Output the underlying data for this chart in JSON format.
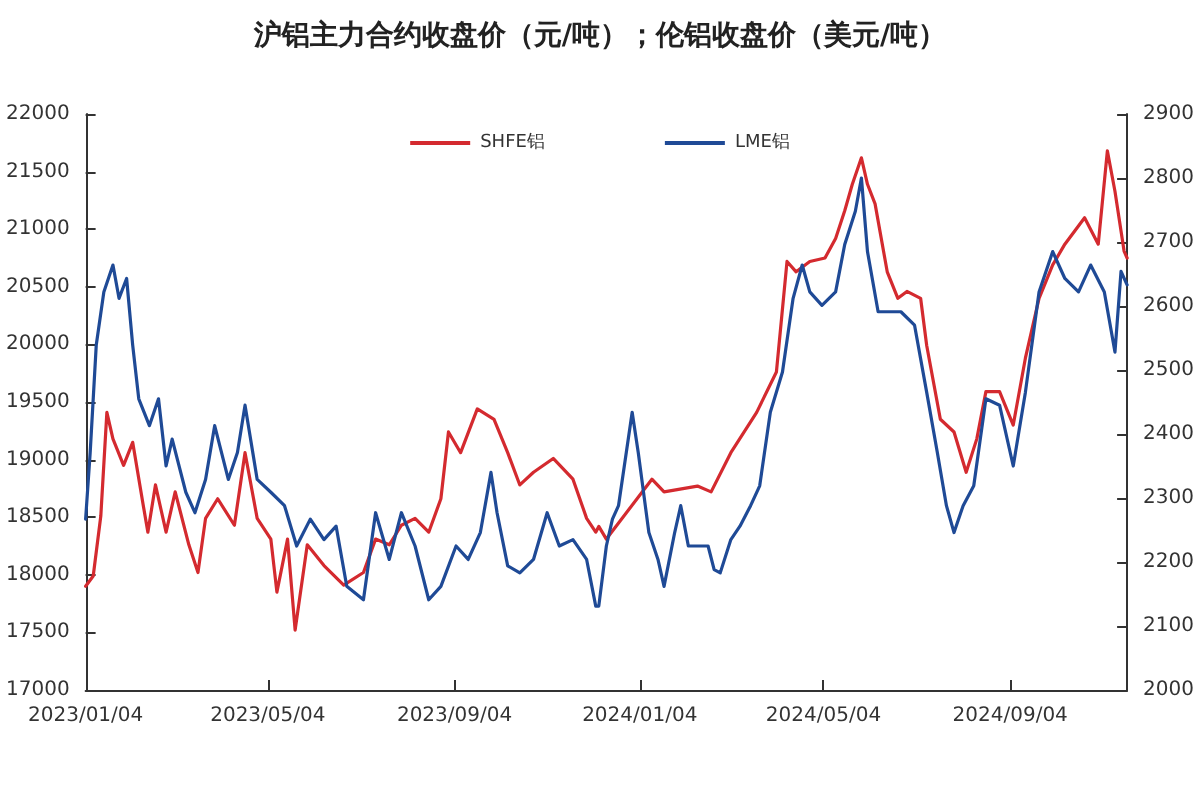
{
  "chart_data": {
    "type": "line",
    "title": "沪铝主力合约收盘价（元/吨）；伦铝收盘价（美元/吨）",
    "xlim": [
      "2023-01-04",
      "2024-11-20"
    ],
    "xticks": [
      {
        "value": "2023-01-04",
        "label": "2023/01/04"
      },
      {
        "value": "2023-05-04",
        "label": "2023/05/04"
      },
      {
        "value": "2023-09-04",
        "label": "2023/09/04"
      },
      {
        "value": "2024-01-04",
        "label": "2024/01/04"
      },
      {
        "value": "2024-05-04",
        "label": "2024/05/04"
      },
      {
        "value": "2024-09-04",
        "label": "2024/09/04"
      }
    ],
    "ylim": [
      17000,
      22000
    ],
    "yticks": [
      17000,
      17500,
      18000,
      18500,
      19000,
      19500,
      20000,
      20500,
      21000,
      21500,
      22000
    ],
    "y2lim": [
      2000,
      2900
    ],
    "y2ticks": [
      2000,
      2100,
      2200,
      2300,
      2400,
      2500,
      2600,
      2700,
      2800,
      2900
    ],
    "grid": false,
    "legend": "top",
    "marker": "none",
    "line_style": "solid",
    "series": [
      {
        "name": "SHFE铝",
        "color": "#d42a2f",
        "x": [
          "2023-01-04",
          "2023-01-09",
          "2023-01-14",
          "2023-01-18",
          "2023-01-22",
          "2023-01-29",
          "2023-02-04",
          "2023-02-11",
          "2023-02-14",
          "2023-02-19",
          "2023-02-26",
          "2023-03-04",
          "2023-03-13",
          "2023-03-19",
          "2023-03-24",
          "2023-04-01",
          "2023-04-12",
          "2023-04-19",
          "2023-04-27",
          "2023-05-06",
          "2023-05-10",
          "2023-05-17",
          "2023-05-22",
          "2023-05-30",
          "2023-06-10",
          "2023-06-23",
          "2023-07-06",
          "2023-07-14",
          "2023-07-23",
          "2023-07-31",
          "2023-08-09",
          "2023-08-18",
          "2023-08-26",
          "2023-08-31",
          "2023-09-08",
          "2023-09-19",
          "2023-09-30",
          "2023-10-09",
          "2023-10-17",
          "2023-10-26",
          "2023-11-08",
          "2023-11-21",
          "2023-11-30",
          "2023-12-06",
          "2023-12-08",
          "2023-12-13",
          "2024-01-12",
          "2024-01-20",
          "2024-02-11",
          "2024-02-20",
          "2024-03-04",
          "2024-03-21",
          "2024-04-03",
          "2024-04-10",
          "2024-04-16",
          "2024-04-25",
          "2024-05-05",
          "2024-05-12",
          "2024-05-18",
          "2024-05-23",
          "2024-05-29",
          "2024-06-02",
          "2024-06-07",
          "2024-06-15",
          "2024-06-22",
          "2024-06-28",
          "2024-07-07",
          "2024-07-11",
          "2024-07-20",
          "2024-07-29",
          "2024-08-06",
          "2024-08-13",
          "2024-08-19",
          "2024-08-28",
          "2024-09-06",
          "2024-09-14",
          "2024-09-23",
          "2024-10-02",
          "2024-10-10",
          "2024-10-23",
          "2024-11-01",
          "2024-11-07",
          "2024-11-12",
          "2024-11-18",
          "2024-11-20"
        ],
        "values": [
          17900,
          17990,
          18510,
          19410,
          19180,
          18950,
          19150,
          18600,
          18370,
          18780,
          18370,
          18720,
          18260,
          18020,
          18490,
          18660,
          18430,
          19060,
          18490,
          18310,
          17850,
          18310,
          17520,
          18260,
          18080,
          17910,
          18020,
          18310,
          18260,
          18430,
          18490,
          18370,
          18660,
          19240,
          19060,
          19440,
          19350,
          19060,
          18780,
          18890,
          19010,
          18830,
          18490,
          18370,
          18420,
          18310,
          18830,
          18720,
          18770,
          18720,
          19060,
          19410,
          19760,
          20720,
          20630,
          20720,
          20750,
          20920,
          21160,
          21390,
          21620,
          21390,
          21220,
          20630,
          20400,
          20460,
          20400,
          19990,
          19350,
          19240,
          18890,
          19180,
          19590,
          19590,
          19300,
          19880,
          20400,
          20690,
          20870,
          21100,
          20870,
          21680,
          21330,
          20810,
          20750
        ]
      },
      {
        "name": "LME铝",
        "color": "#1f4a96",
        "axis": "y2",
        "x": [
          "2023-01-04",
          "2023-01-07",
          "2023-01-11",
          "2023-01-16",
          "2023-01-22",
          "2023-01-26",
          "2023-01-31",
          "2023-02-04",
          "2023-02-08",
          "2023-02-15",
          "2023-02-21",
          "2023-02-26",
          "2023-03-02",
          "2023-03-11",
          "2023-03-17",
          "2023-03-24",
          "2023-03-30",
          "2023-04-08",
          "2023-04-14",
          "2023-04-19",
          "2023-04-27",
          "2023-05-06",
          "2023-05-15",
          "2023-05-23",
          "2023-06-01",
          "2023-06-10",
          "2023-06-18",
          "2023-06-25",
          "2023-07-06",
          "2023-07-14",
          "2023-07-23",
          "2023-07-31",
          "2023-08-09",
          "2023-08-18",
          "2023-08-26",
          "2023-09-05",
          "2023-09-13",
          "2023-09-21",
          "2023-09-28",
          "2023-10-02",
          "2023-10-09",
          "2023-10-17",
          "2023-10-26",
          "2023-11-04",
          "2023-11-12",
          "2023-11-21",
          "2023-11-30",
          "2023-12-06",
          "2023-12-08",
          "2023-12-13",
          "2023-12-17",
          "2023-12-21",
          "2023-12-30",
          "2024-01-03",
          "2024-01-10",
          "2024-01-16",
          "2024-01-20",
          "2024-01-27",
          "2024-01-31",
          "2024-02-05",
          "2024-02-11",
          "2024-02-18",
          "2024-02-22",
          "2024-02-26",
          "2024-03-04",
          "2024-03-10",
          "2024-03-17",
          "2024-03-23",
          "2024-03-30",
          "2024-04-07",
          "2024-04-14",
          "2024-04-20",
          "2024-04-25",
          "2024-05-03",
          "2024-05-12",
          "2024-05-18",
          "2024-05-25",
          "2024-05-29",
          "2024-06-02",
          "2024-06-09",
          "2024-06-15",
          "2024-06-24",
          "2024-07-03",
          "2024-07-11",
          "2024-07-18",
          "2024-07-24",
          "2024-07-29",
          "2024-08-04",
          "2024-08-11",
          "2024-08-19",
          "2024-08-28",
          "2024-09-06",
          "2024-09-14",
          "2024-09-23",
          "2024-10-02",
          "2024-10-10",
          "2024-10-19",
          "2024-10-27",
          "2024-11-05",
          "2024-11-12",
          "2024-11-16",
          "2024-11-20"
        ],
        "values": [
          2267,
          2371,
          2539,
          2622,
          2664,
          2612,
          2643,
          2539,
          2455,
          2413,
          2455,
          2350,
          2392,
          2309,
          2277,
          2329,
          2413,
          2329,
          2371,
          2445,
          2329,
          2309,
          2288,
          2225,
          2267,
          2235,
          2256,
          2162,
          2141,
          2277,
          2204,
          2277,
          2225,
          2141,
          2162,
          2225,
          2204,
          2246,
          2340,
          2277,
          2194,
          2183,
          2204,
          2277,
          2225,
          2235,
          2204,
          2131,
          2131,
          2225,
          2267,
          2288,
          2434,
          2371,
          2246,
          2204,
          2162,
          2246,
          2288,
          2225,
          2225,
          2225,
          2188,
          2183,
          2235,
          2256,
          2288,
          2319,
          2434,
          2497,
          2612,
          2664,
          2622,
          2601,
          2622,
          2696,
          2748,
          2800,
          2685,
          2591,
          2591,
          2591,
          2570,
          2465,
          2371,
          2288,
          2246,
          2288,
          2319,
          2455,
          2445,
          2350,
          2465,
          2622,
          2685,
          2643,
          2622,
          2664,
          2622,
          2528,
          2654,
          2633
        ]
      }
    ]
  }
}
